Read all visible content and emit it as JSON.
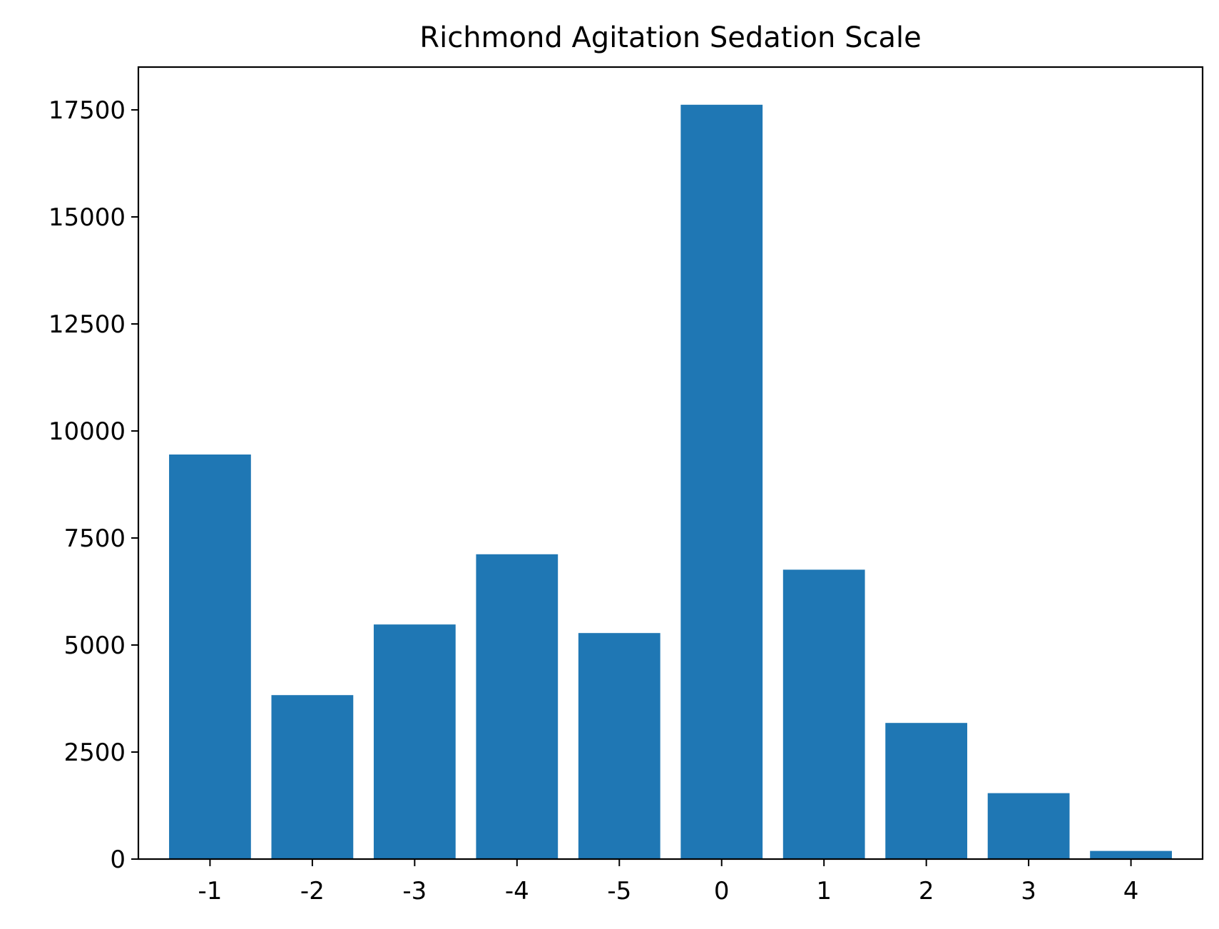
{
  "chart_data": {
    "type": "bar",
    "title": "Richmond Agitation Sedation Scale",
    "xlabel": "",
    "ylabel": "",
    "categories": [
      "-1",
      "-2",
      "-3",
      "-4",
      "-5",
      "0",
      "1",
      "2",
      "3",
      "4"
    ],
    "values": [
      9450,
      3830,
      5480,
      7120,
      5280,
      17620,
      6760,
      3180,
      1540,
      190
    ],
    "ylim": [
      0,
      18500
    ],
    "yticks": [
      0,
      2500,
      5000,
      7500,
      10000,
      12500,
      15000,
      17500
    ],
    "bar_color": "#1f77b4",
    "grid": false,
    "legend": "none"
  }
}
